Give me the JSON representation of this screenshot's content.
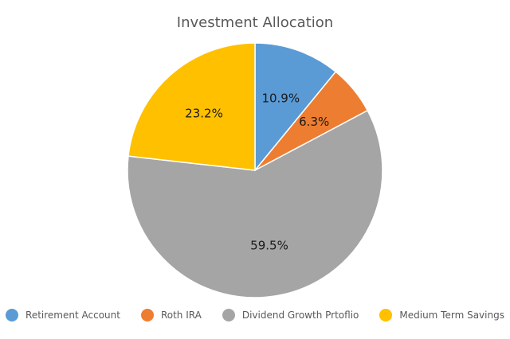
{
  "chart_data": {
    "type": "pie",
    "title": "Investment Allocation",
    "legend_position": "bottom",
    "slices": [
      {
        "name": "Retirement Account",
        "value": 10.9,
        "label": "10.9%",
        "color": "#5B9BD5"
      },
      {
        "name": "Roth IRA",
        "value": 6.3,
        "label": "6.3%",
        "color": "#ED7D31"
      },
      {
        "name": "Dividend Growth Prtoflio",
        "value": 59.5,
        "label": "59.5%",
        "color": "#A5A5A5"
      },
      {
        "name": "Medium Term Savings",
        "value": 23.2,
        "label": "23.2%",
        "color": "#FFC000"
      }
    ]
  }
}
